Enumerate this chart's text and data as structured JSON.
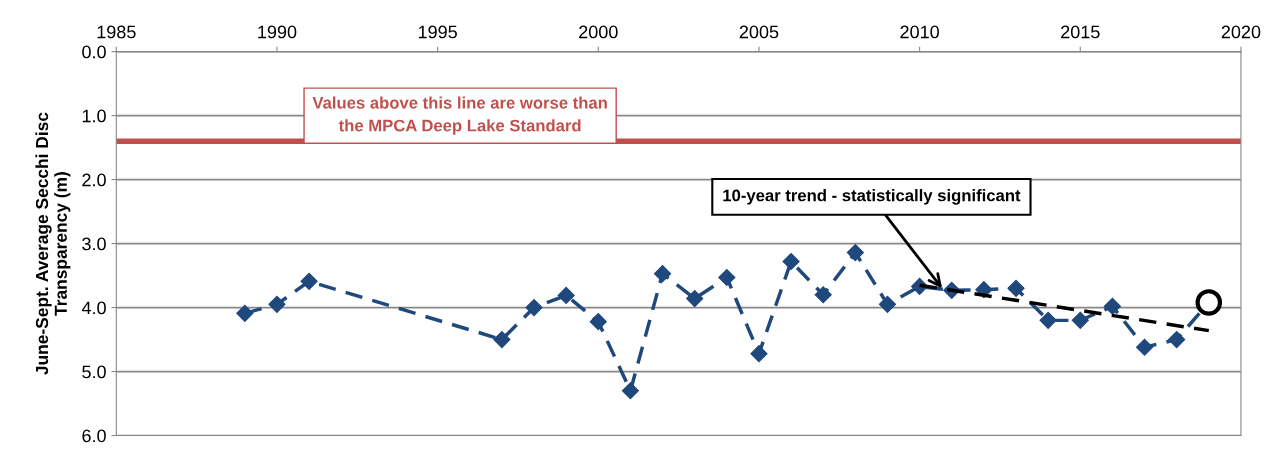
{
  "chart_data": {
    "type": "line",
    "ylabel": "June-Sept. Average Secchi Disc\nTransparency (m)",
    "xlim": [
      1985,
      2020
    ],
    "xticks": [
      1985,
      1990,
      1995,
      2000,
      2005,
      2010,
      2015,
      2020
    ],
    "ylim": [
      6,
      0
    ],
    "yticks": [
      {
        "value": 0,
        "label": "0.0"
      },
      {
        "value": 1,
        "label": "1.0"
      },
      {
        "value": 2,
        "label": "2.0"
      },
      {
        "value": 3,
        "label": "3.0"
      },
      {
        "value": 4,
        "label": "4.0"
      },
      {
        "value": 5,
        "label": "5.0"
      },
      {
        "value": 6,
        "label": "6.0"
      }
    ],
    "grid": "y",
    "series": [
      {
        "color": "#1f497d",
        "marker": "diamond",
        "line_style": "dashed",
        "x": [
          1989,
          1990,
          1991,
          1997,
          1998,
          1999,
          2000,
          2001,
          2002,
          2003,
          2004,
          2005,
          2006,
          2007,
          2008,
          2009,
          2010,
          2011,
          2012,
          2013,
          2014,
          2015,
          2016,
          2017,
          2018,
          2019
        ],
        "values": [
          4.09,
          3.95,
          3.59,
          4.5,
          4.0,
          3.81,
          4.22,
          5.3,
          3.47,
          3.86,
          3.53,
          4.72,
          3.28,
          3.8,
          3.14,
          3.95,
          3.67,
          3.73,
          3.72,
          3.7,
          4.2,
          4.2,
          3.98,
          4.62,
          4.5,
          3.92
        ]
      },
      {
        "type": "scatter",
        "color": "#000000",
        "marker": "circle",
        "x": [
          2019
        ],
        "values": [
          3.92
        ]
      },
      {
        "type": "line",
        "color": "#000000",
        "marker": "none",
        "line_style": "dashed",
        "x": [
          2010,
          2019
        ],
        "values": [
          3.65,
          4.36
        ]
      }
    ],
    "ref_lines": [
      {
        "axis": "y",
        "value": 1.4,
        "color": "#c0504d",
        "line_style": "solid",
        "label": "Values above this line are worse than\nthe MPCA Deep Lake Standard"
      }
    ],
    "annotations": [
      {
        "text": "10-year trend - statistically significant",
        "x": 2010.7,
        "y": 3.7
      }
    ]
  }
}
